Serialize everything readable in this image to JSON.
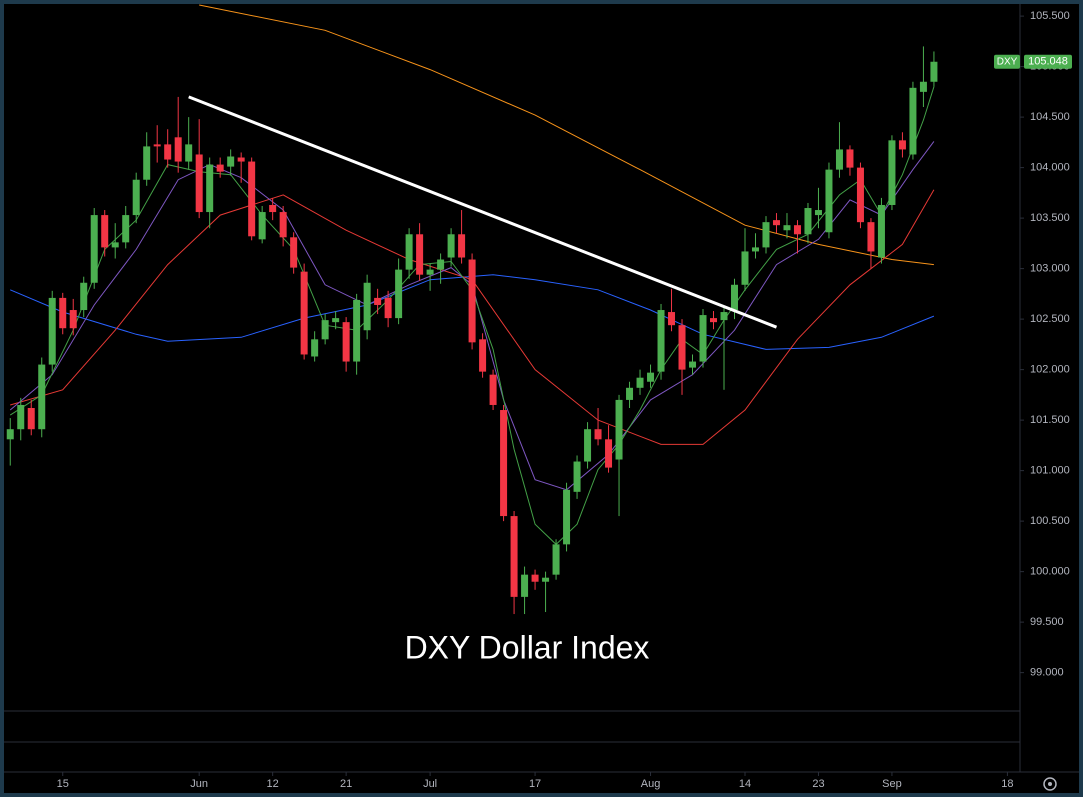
{
  "chart_data": {
    "type": "candlestick",
    "title": "DXY Dollar Index",
    "symbol": "DXY",
    "last_value": 105.048,
    "up_color": "#4caf50",
    "down_color": "#f23645",
    "x": [
      0,
      1,
      2,
      3,
      4,
      5,
      6,
      7,
      8,
      9,
      10,
      11,
      12,
      13,
      14,
      15,
      16,
      17,
      18,
      19,
      20,
      21,
      22,
      23,
      24,
      25,
      26,
      27,
      28,
      29,
      30,
      31,
      32,
      33,
      34,
      35,
      36,
      37,
      38,
      39,
      40,
      41,
      42,
      43,
      44,
      45,
      46,
      47,
      48,
      49,
      50,
      51,
      52,
      53,
      54,
      55,
      56,
      57,
      58,
      59,
      60,
      61,
      62,
      63,
      64,
      65,
      66,
      67,
      68,
      69,
      70,
      71,
      72,
      73,
      74,
      75,
      76,
      77,
      78,
      79,
      80,
      81,
      82,
      83,
      84,
      85,
      86,
      87,
      88
    ],
    "open": [
      101.31,
      101.41,
      101.62,
      101.41,
      102.05,
      102.71,
      102.59,
      102.59,
      102.86,
      103.53,
      103.21,
      103.26,
      103.53,
      103.88,
      104.23,
      104.23,
      104.3,
      104.06,
      104.13,
      103.56,
      104.03,
      104.01,
      104.1,
      104.06,
      103.29,
      103.63,
      103.56,
      103.31,
      102.97,
      102.13,
      102.3,
      102.47,
      102.47,
      102.08,
      102.39,
      102.71,
      102.71,
      102.51,
      102.99,
      103.34,
      102.94,
      102.99,
      103.11,
      103.34,
      103.09,
      102.3,
      101.95,
      101.6,
      100.55,
      99.75,
      99.97,
      99.9,
      99.97,
      100.27,
      100.79,
      101.09,
      101.41,
      101.31,
      101.11,
      101.7,
      101.82,
      101.88,
      101.98,
      102.57,
      102.44,
      102.02,
      102.08,
      102.51,
      102.49,
      102.59,
      102.84,
      103.17,
      103.21,
      103.48,
      103.38,
      103.43,
      103.34,
      103.53,
      103.36,
      103.98,
      104.18,
      104.0,
      103.46,
      103.11,
      103.63,
      104.27,
      104.13,
      104.75,
      104.85
    ],
    "high": [
      101.52,
      101.72,
      101.7,
      102.12,
      102.78,
      102.76,
      102.7,
      102.92,
      103.6,
      103.58,
      103.45,
      103.62,
      103.95,
      104.35,
      104.42,
      104.38,
      104.7,
      104.5,
      104.48,
      104.1,
      104.1,
      104.18,
      104.15,
      104.1,
      103.62,
      103.7,
      103.62,
      103.36,
      103.05,
      102.38,
      102.55,
      102.58,
      102.52,
      102.75,
      102.94,
      102.8,
      102.78,
      103.1,
      103.4,
      103.45,
      103.05,
      103.15,
      103.4,
      103.58,
      103.15,
      102.36,
      102.0,
      101.65,
      100.6,
      100.05,
      100.02,
      100.0,
      100.32,
      100.88,
      101.15,
      101.48,
      101.62,
      101.45,
      101.75,
      101.88,
      102.0,
      102.05,
      102.65,
      102.8,
      102.5,
      102.15,
      102.6,
      102.58,
      102.62,
      102.9,
      103.4,
      103.35,
      103.52,
      103.55,
      103.55,
      103.48,
      103.65,
      103.8,
      104.05,
      104.45,
      104.22,
      104.05,
      103.5,
      103.7,
      104.32,
      104.35,
      104.85,
      105.2,
      105.15
    ],
    "low": [
      101.05,
      101.3,
      101.35,
      101.33,
      101.98,
      102.35,
      102.34,
      102.52,
      102.8,
      103.12,
      103.1,
      103.2,
      103.45,
      103.82,
      104.05,
      104.0,
      103.95,
      103.98,
      103.5,
      103.4,
      103.9,
      103.92,
      103.85,
      103.28,
      103.25,
      103.48,
      103.22,
      102.95,
      102.1,
      102.08,
      102.25,
      102.4,
      101.98,
      101.95,
      102.3,
      102.55,
      102.42,
      102.45,
      102.9,
      102.88,
      102.78,
      102.85,
      103.02,
      103.05,
      102.2,
      101.92,
      101.6,
      100.5,
      99.58,
      99.58,
      99.82,
      99.6,
      99.92,
      100.2,
      100.72,
      101.02,
      101.25,
      100.98,
      100.55,
      101.62,
      101.75,
      101.82,
      101.9,
      102.38,
      101.75,
      101.95,
      102.02,
      102.4,
      101.8,
      102.5,
      102.78,
      103.1,
      103.15,
      103.35,
      103.3,
      103.15,
      103.25,
      103.4,
      103.3,
      103.9,
      103.92,
      103.4,
      103.0,
      103.05,
      103.58,
      104.1,
      104.08,
      104.6,
      104.8
    ],
    "close": [
      101.41,
      101.65,
      101.41,
      102.05,
      102.71,
      102.41,
      102.41,
      102.86,
      103.53,
      103.21,
      103.26,
      103.53,
      103.88,
      104.21,
      104.21,
      104.08,
      104.06,
      104.23,
      103.56,
      104.03,
      103.96,
      104.11,
      104.06,
      103.32,
      103.56,
      103.56,
      103.31,
      103.01,
      102.15,
      102.3,
      102.49,
      102.51,
      102.08,
      102.69,
      102.86,
      102.64,
      102.51,
      102.99,
      103.34,
      102.94,
      102.99,
      103.09,
      103.34,
      103.11,
      102.27,
      101.98,
      101.65,
      100.55,
      99.75,
      99.97,
      99.9,
      99.94,
      100.27,
      100.81,
      101.09,
      101.41,
      101.31,
      101.03,
      101.7,
      101.82,
      101.92,
      101.97,
      102.59,
      102.44,
      102.0,
      102.08,
      102.54,
      102.47,
      102.57,
      102.84,
      103.17,
      103.21,
      103.46,
      103.43,
      103.43,
      103.34,
      103.6,
      103.58,
      103.98,
      104.18,
      104.0,
      103.46,
      103.17,
      103.63,
      104.27,
      104.18,
      104.79,
      104.85,
      105.048
    ],
    "series": [
      {
        "color": "#f7931a",
        "x": [
          18,
          30,
          40,
          50,
          60,
          70,
          77,
          84,
          88
        ],
        "values": [
          105.61,
          105.36,
          104.97,
          104.52,
          103.98,
          103.43,
          103.24,
          103.09,
          103.04
        ]
      },
      {
        "color": "#2962ff",
        "x": [
          0,
          5,
          12,
          15,
          22,
          28,
          34,
          40,
          46,
          50,
          56,
          61,
          66,
          72,
          78,
          83,
          88
        ],
        "values": [
          102.79,
          102.57,
          102.35,
          102.28,
          102.32,
          102.51,
          102.64,
          102.89,
          102.94,
          102.89,
          102.79,
          102.59,
          102.35,
          102.2,
          102.22,
          102.32,
          102.53
        ]
      },
      {
        "color": "#e53935",
        "x": [
          0,
          5,
          10,
          15,
          20,
          26,
          32,
          38,
          44,
          50,
          56,
          62,
          66,
          70,
          75,
          80,
          85,
          88
        ],
        "values": [
          101.65,
          101.8,
          102.39,
          103.04,
          103.53,
          103.73,
          103.38,
          103.09,
          102.89,
          102.0,
          101.5,
          101.26,
          101.26,
          101.6,
          102.3,
          102.84,
          103.24,
          103.78
        ]
      },
      {
        "color": "#7e57c2",
        "x": [
          0,
          4,
          8,
          12,
          16,
          19,
          22,
          26,
          30,
          34,
          38,
          42,
          44,
          47,
          50,
          53,
          57,
          61,
          65,
          69,
          73,
          77,
          80,
          83,
          86,
          88
        ],
        "values": [
          101.6,
          101.95,
          102.64,
          103.19,
          103.88,
          104.03,
          103.9,
          103.58,
          102.84,
          102.64,
          102.84,
          103.01,
          102.84,
          101.7,
          100.91,
          100.81,
          101.16,
          101.7,
          101.95,
          102.39,
          103.04,
          103.29,
          103.68,
          103.53,
          103.98,
          104.26
        ]
      },
      {
        "color": "#43a047",
        "x": [
          0,
          3,
          6,
          9,
          12,
          15,
          18,
          21,
          24,
          27,
          30,
          33,
          36,
          39,
          42,
          44,
          46,
          48,
          50,
          52,
          54,
          56,
          58,
          60,
          62,
          64,
          66,
          68,
          70,
          73,
          76,
          79,
          81,
          83,
          85,
          87,
          88
        ],
        "values": [
          101.55,
          101.75,
          102.39,
          103.19,
          103.48,
          104.03,
          103.96,
          103.93,
          103.53,
          103.19,
          102.44,
          102.39,
          102.69,
          103.04,
          103.07,
          102.79,
          102.2,
          101.21,
          100.47,
          100.27,
          100.47,
          101.01,
          101.26,
          101.6,
          102.0,
          102.3,
          102.15,
          102.49,
          102.79,
          103.19,
          103.34,
          103.73,
          103.88,
          103.53,
          103.93,
          104.47,
          104.8
        ]
      }
    ],
    "trendline": {
      "color": "#ffffff",
      "x": [
        17,
        73
      ],
      "values": [
        104.7,
        102.42
      ]
    },
    "xlim": [
      -0.5,
      96.2
    ],
    "xticks": [
      {
        "value": 5,
        "label": "15"
      },
      {
        "value": 18,
        "label": "Jun"
      },
      {
        "value": 25,
        "label": "12"
      },
      {
        "value": 32,
        "label": "21"
      },
      {
        "value": 40,
        "label": "Jul"
      },
      {
        "value": 50,
        "label": "17"
      },
      {
        "value": 61,
        "label": "Aug"
      },
      {
        "value": 70,
        "label": "14"
      },
      {
        "value": 77,
        "label": "23"
      },
      {
        "value": 84,
        "label": "Sep"
      },
      {
        "value": 95,
        "label": "18"
      }
    ],
    "ylim": [
      98.63,
      105.61
    ],
    "yticks": [
      {
        "value": 99,
        "label": "99.000"
      },
      {
        "value": 99.5,
        "label": "99.500"
      },
      {
        "value": 100,
        "label": "100.000"
      },
      {
        "value": 100.5,
        "label": "100.500"
      },
      {
        "value": 101,
        "label": "101.000"
      },
      {
        "value": 101.5,
        "label": "101.500"
      },
      {
        "value": 102,
        "label": "102.000"
      },
      {
        "value": 102.5,
        "label": "102.500"
      },
      {
        "value": 103,
        "label": "103.000"
      },
      {
        "value": 103.5,
        "label": "103.500"
      },
      {
        "value": 104,
        "label": "104.000"
      },
      {
        "value": 104.5,
        "label": "104.500"
      },
      {
        "value": 105,
        "label": "105.000"
      },
      {
        "value": 105.5,
        "label": "105.500"
      }
    ]
  }
}
